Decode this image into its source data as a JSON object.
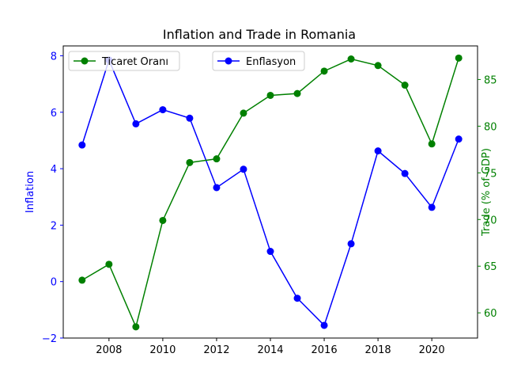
{
  "chart_data": {
    "type": "line",
    "title": "Inflation and Trade in Romania",
    "x": [
      2007,
      2008,
      2009,
      2010,
      2011,
      2012,
      2013,
      2014,
      2015,
      2016,
      2017,
      2018,
      2019,
      2020,
      2021
    ],
    "xlim": [
      2006.3,
      2021.7
    ],
    "xticks": [
      "2008",
      "2010",
      "2012",
      "2014",
      "2016",
      "2018",
      "2020"
    ],
    "grid": false,
    "left_axis": {
      "label": "Inflation",
      "color": "#0000ff",
      "ylim": [
        -2,
        8.35
      ],
      "ticks": [
        "−2",
        "0",
        "2",
        "4",
        "6",
        "8"
      ],
      "tick_values": [
        -2,
        0,
        2,
        4,
        6,
        8
      ]
    },
    "right_axis": {
      "label": "Trade (% of GDP)",
      "color": "#008000",
      "ylim": [
        57.3,
        88.6
      ],
      "ticks": [
        "60",
        "65",
        "70",
        "75",
        "80",
        "85"
      ],
      "tick_values": [
        60,
        65,
        70,
        75,
        80,
        85
      ]
    },
    "series": [
      {
        "name": "Enflasyon",
        "axis": "left",
        "color": "#0000ff",
        "values": [
          4.84,
          7.85,
          5.59,
          6.09,
          5.79,
          3.33,
          3.98,
          1.07,
          -0.59,
          -1.55,
          1.34,
          4.63,
          3.83,
          2.63,
          5.05
        ]
      },
      {
        "name": "Ticaret Oranı",
        "axis": "right",
        "color": "#008000",
        "values": [
          63.5,
          65.2,
          58.5,
          69.9,
          76.1,
          76.5,
          81.4,
          83.3,
          83.5,
          85.9,
          87.2,
          86.5,
          84.4,
          78.1,
          87.3
        ]
      }
    ],
    "legends": [
      {
        "series": "Ticaret Oranı",
        "placement": "upper-left"
      },
      {
        "series": "Enflasyon",
        "placement": "upper-center"
      }
    ]
  }
}
